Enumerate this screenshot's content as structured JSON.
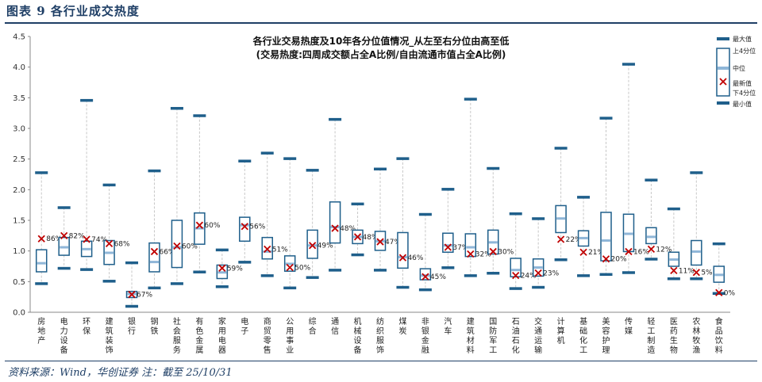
{
  "figure": {
    "title": "图表 9   各行业成交热度",
    "source": "资料来源：Wind，华创证券  注：截至 25/10/31"
  },
  "colors": {
    "box": "#1f5f8b",
    "median": "#8fb6d8",
    "whisker": "#c8c8c8",
    "latest": "#c00000",
    "axis": "#888888"
  },
  "chart_data": {
    "type": "boxplot",
    "title": "各行业交易热度及10年各分位值情况_从左至右分位由高至低",
    "subtitle": "(交易热度:四周成交额占全A比例/自由流通市值占全A比例)",
    "ylim": [
      0,
      4.5
    ],
    "yticks": [
      "0.0",
      "0.5",
      "1.0",
      "1.5",
      "2.0",
      "2.5",
      "3.0",
      "3.5",
      "4.0",
      "4.5"
    ],
    "legend": [
      "最大值",
      "上4分位",
      "中位",
      "最新值",
      "下4分位",
      "最小值"
    ],
    "categories": [
      "房地产",
      "电力设备",
      "环保",
      "建筑装饰",
      "银行",
      "钢铁",
      "社会服务",
      "有色金属",
      "家用电器",
      "电子",
      "商贸零售",
      "公用事业",
      "综合",
      "通信",
      "机械设备",
      "纺织服饰",
      "煤炭",
      "非银金融",
      "汽车",
      "建筑材料",
      "国防军工",
      "石油石化",
      "交通运输",
      "计算机",
      "基础化工",
      "美容护理",
      "传媒",
      "轻工制造",
      "医药生物",
      "农林牧渔",
      "食品饮料"
    ],
    "max": [
      2.28,
      1.71,
      3.46,
      2.08,
      0.81,
      2.31,
      3.33,
      3.21,
      1.02,
      2.47,
      2.6,
      2.51,
      2.32,
      3.15,
      1.77,
      2.34,
      2.51,
      1.6,
      2.01,
      3.48,
      2.35,
      1.61,
      1.53,
      2.68,
      1.88,
      3.17,
      4.05,
      2.16,
      1.69,
      2.28,
      1.12
    ],
    "q3": [
      1.02,
      1.22,
      1.16,
      1.17,
      0.34,
      1.13,
      1.5,
      1.62,
      0.77,
      1.55,
      1.22,
      0.92,
      1.34,
      1.8,
      1.34,
      1.32,
      1.3,
      0.71,
      1.29,
      1.28,
      1.34,
      0.88,
      0.87,
      1.74,
      1.33,
      1.63,
      1.6,
      1.38,
      0.98,
      1.17,
      0.75
    ],
    "median": [
      0.8,
      1.06,
      1.03,
      0.97,
      0.3,
      0.82,
      1.06,
      1.37,
      0.65,
      1.42,
      0.99,
      0.79,
      1.09,
      1.39,
      1.23,
      1.16,
      0.9,
      0.6,
      1.09,
      1.06,
      1.14,
      0.69,
      0.73,
      1.53,
      1.21,
      1.17,
      1.28,
      1.23,
      0.86,
      0.99,
      0.61
    ],
    "q1": [
      0.66,
      0.93,
      0.91,
      0.78,
      0.24,
      0.66,
      0.73,
      1.11,
      0.55,
      1.16,
      0.87,
      0.67,
      0.88,
      1.13,
      1.12,
      1.01,
      0.72,
      0.53,
      0.98,
      0.91,
      0.95,
      0.58,
      0.59,
      1.3,
      1.08,
      0.84,
      0.99,
      1.12,
      0.75,
      0.77,
      0.49
    ],
    "min": [
      0.47,
      0.72,
      0.7,
      0.51,
      0.1,
      0.4,
      0.47,
      0.66,
      0.42,
      0.82,
      0.6,
      0.4,
      0.57,
      0.69,
      0.94,
      0.69,
      0.41,
      0.37,
      0.73,
      0.6,
      0.64,
      0.39,
      0.41,
      0.86,
      0.6,
      0.62,
      0.65,
      0.87,
      0.55,
      0.55,
      0.31
    ],
    "latest": [
      1.2,
      1.25,
      1.19,
      1.12,
      0.29,
      0.99,
      1.08,
      1.42,
      0.72,
      1.4,
      1.03,
      0.73,
      1.09,
      1.37,
      1.23,
      1.15,
      0.89,
      0.58,
      1.06,
      0.95,
      0.99,
      0.6,
      0.64,
      1.19,
      0.98,
      0.87,
      0.99,
      1.03,
      0.68,
      0.65,
      0.32
    ],
    "latest_pct": [
      "86%",
      "82%",
      "74%",
      "68%",
      "67%",
      "66%",
      "60%",
      "60%",
      "59%",
      "56%",
      "51%",
      "50%",
      "49%",
      "48%",
      "48%",
      "47%",
      "46%",
      "45%",
      "37%",
      "32%",
      "30%",
      "24%",
      "23%",
      "22%",
      "21%",
      "20%",
      "16%",
      "12%",
      "11%",
      "5%",
      "0%"
    ]
  }
}
